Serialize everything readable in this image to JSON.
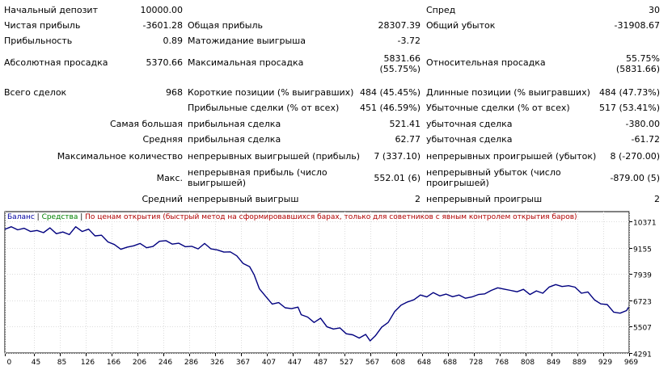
{
  "report": {
    "rows": [
      {
        "cells": [
          {
            "x": 5,
            "text": "Начальный депозит"
          },
          {
            "rx": 226,
            "text": "10000.00"
          },
          {
            "x": 527,
            "text": "Спред"
          },
          {
            "rx": 816,
            "text": "30"
          }
        ]
      },
      {
        "cells": [
          {
            "x": 5,
            "text": "Чистая прибыль"
          },
          {
            "rx": 226,
            "text": "-3601.28"
          },
          {
            "x": 232,
            "text": "Общая прибыль"
          },
          {
            "rx": 520,
            "text": "28307.39"
          },
          {
            "x": 527,
            "text": "Общий убыток"
          },
          {
            "rx": 816,
            "text": "-31908.67"
          }
        ]
      },
      {
        "cells": [
          {
            "x": 5,
            "text": "Прибыльность"
          },
          {
            "rx": 226,
            "text": "0.89"
          },
          {
            "x": 232,
            "text": "Матожидание выигрыша"
          },
          {
            "rx": 520,
            "text": "-3.72"
          }
        ]
      },
      {
        "cells": [
          {
            "x": 5,
            "text": "Абсолютная просадка"
          },
          {
            "rx": 226,
            "text": "5370.66"
          },
          {
            "x": 232,
            "text": "Максимальная просадка"
          },
          {
            "rx": 520,
            "text": "5831.66",
            "sub": "(55.75%)"
          },
          {
            "x": 527,
            "text": "Относительная просадка"
          },
          {
            "rx": 816,
            "text": "55.75%",
            "sub": "(5831.66)"
          }
        ]
      },
      {
        "cells": [
          {
            "x": 5,
            "text": "Всего сделок"
          },
          {
            "rx": 226,
            "text": "968"
          },
          {
            "x": 232,
            "text": "Короткие позиции (% выигравших)"
          },
          {
            "rx": 520,
            "text": "484 (45.45%)"
          },
          {
            "x": 527,
            "text": "Длинные позиции (% выигравших)"
          },
          {
            "rx": 816,
            "text": "484 (47.73%)"
          }
        ]
      },
      {
        "cells": [
          {
            "x": 232,
            "text": "Прибыльные сделки (% от всех)"
          },
          {
            "rx": 520,
            "text": "451 (46.59%)"
          },
          {
            "x": 527,
            "text": "Убыточные сделки (% от всех)"
          },
          {
            "rx": 816,
            "text": "517 (53.41%)"
          }
        ]
      },
      {
        "cells": [
          {
            "rx": 226,
            "text": "Самая большая"
          },
          {
            "x": 232,
            "text": "прибыльная сделка"
          },
          {
            "rx": 520,
            "text": "521.41"
          },
          {
            "x": 527,
            "text": "убыточная сделка"
          },
          {
            "rx": 816,
            "text": "-380.00"
          }
        ]
      },
      {
        "cells": [
          {
            "rx": 226,
            "text": "Средняя"
          },
          {
            "x": 232,
            "text": "прибыльная сделка"
          },
          {
            "rx": 520,
            "text": "62.77"
          },
          {
            "x": 527,
            "text": "убыточная сделка"
          },
          {
            "rx": 816,
            "text": "-61.72"
          }
        ]
      },
      {
        "cells": [
          {
            "rx": 226,
            "text": "Максимальное количество"
          },
          {
            "x": 232,
            "text": "непрерывных выигрышей (прибыль)"
          },
          {
            "rx": 520,
            "text": "7 (337.10)"
          },
          {
            "x": 527,
            "text": "непрерывных проигрышей (убыток)"
          },
          {
            "rx": 816,
            "text": "8 (-270.00)"
          }
        ]
      },
      {
        "cells": [
          {
            "rx": 226,
            "text": "Макс."
          },
          {
            "x": 232,
            "text": "непрерывная прибыль (число",
            "sub": "выигрышей)"
          },
          {
            "rx": 520,
            "text": "552.01 (6)"
          },
          {
            "x": 527,
            "text": "непрерывный убыток (число",
            "sub": "проигрышей)"
          },
          {
            "rx": 816,
            "text": "-879.00 (5)"
          }
        ]
      },
      {
        "cells": [
          {
            "rx": 226,
            "text": "Средний"
          },
          {
            "x": 232,
            "text": "непрерывный выигрыш"
          },
          {
            "rx": 520,
            "text": "2"
          },
          {
            "x": 527,
            "text": "непрерывный проигрыш"
          },
          {
            "rx": 816,
            "text": "2"
          }
        ]
      }
    ]
  },
  "legend": {
    "balance": "Баланс",
    "sep1": " | ",
    "equity": "Средства",
    "sep2": " | ",
    "mode": "По ценам открытия (быстрый метод на сформировавшихся барах, только для советников с явным контролем открытия баров)"
  },
  "colors": {
    "balance_line": "#00007f",
    "grid": "#dcdcdc",
    "axis": "#000000"
  },
  "chart_data": {
    "type": "line",
    "series": [
      {
        "name": "Баланс",
        "x": [
          0,
          10,
          20,
          30,
          40,
          50,
          60,
          70,
          80,
          90,
          100,
          110,
          120,
          130,
          140,
          150,
          160,
          170,
          180,
          190,
          200,
          210,
          220,
          230,
          240,
          250,
          260,
          270,
          280,
          290,
          300,
          310,
          320,
          330,
          340,
          350,
          360,
          370,
          380,
          387,
          395,
          405,
          415,
          425,
          435,
          445,
          455,
          460,
          470,
          480,
          490,
          500,
          510,
          520,
          530,
          540,
          550,
          560,
          567,
          575,
          585,
          595,
          605,
          615,
          625,
          635,
          645,
          655,
          665,
          675,
          685,
          695,
          705,
          715,
          725,
          735,
          745,
          755,
          765,
          775,
          785,
          795,
          805,
          815,
          825,
          835,
          845,
          855,
          865,
          875,
          885,
          895,
          905,
          915,
          925,
          935,
          945,
          955,
          965,
          968
        ],
        "y": [
          10000,
          10120,
          9980,
          10050,
          9900,
          9950,
          9850,
          10070,
          9800,
          9880,
          9760,
          10120,
          9900,
          10010,
          9700,
          9730,
          9420,
          9300,
          9080,
          9180,
          9240,
          9350,
          9150,
          9210,
          9450,
          9480,
          9320,
          9360,
          9200,
          9220,
          9100,
          9350,
          9100,
          9050,
          8950,
          8960,
          8780,
          8420,
          8280,
          7900,
          7260,
          6900,
          6550,
          6620,
          6380,
          6340,
          6410,
          6060,
          5950,
          5700,
          5900,
          5500,
          5400,
          5450,
          5180,
          5130,
          4980,
          5150,
          4850,
          5080,
          5490,
          5700,
          6200,
          6500,
          6650,
          6750,
          6970,
          6880,
          7080,
          6930,
          7010,
          6890,
          6970,
          6820,
          6880,
          6990,
          7020,
          7180,
          7300,
          7240,
          7180,
          7120,
          7230,
          6990,
          7160,
          7050,
          7340,
          7450,
          7360,
          7400,
          7330,
          7050,
          7110,
          6750,
          6560,
          6530,
          6180,
          6130,
          6250,
          6400
        ]
      }
    ],
    "xlim": [
      0,
      969
    ],
    "ylim": [
      4291,
      10371
    ],
    "xticks": [
      0,
      45,
      85,
      126,
      166,
      206,
      246,
      286,
      326,
      367,
      407,
      447,
      487,
      527,
      567,
      608,
      648,
      688,
      728,
      768,
      808,
      849,
      889,
      929,
      969
    ],
    "yticks": [
      10371,
      9155,
      7939,
      6723,
      5507,
      4291
    ],
    "grid": true
  }
}
